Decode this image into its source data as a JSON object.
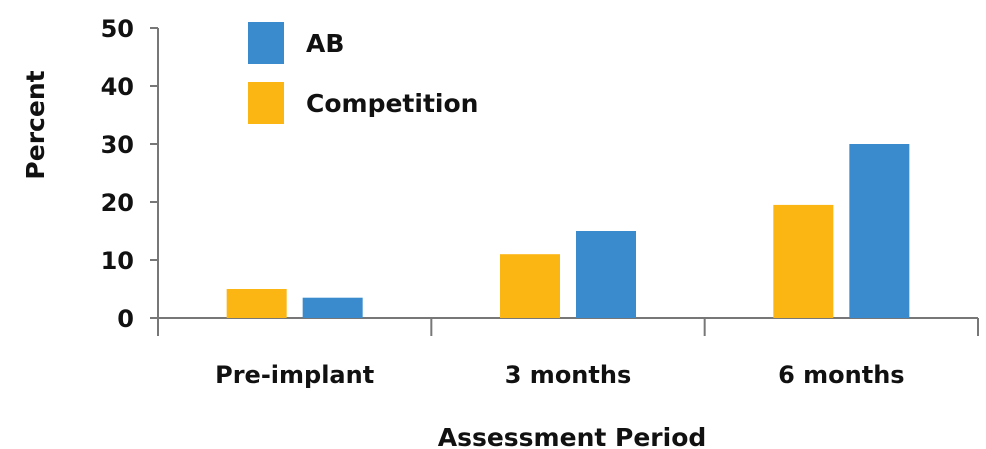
{
  "chart_data": {
    "type": "bar",
    "title": "",
    "xlabel": "Assessment Period",
    "ylabel": "Percent",
    "categories": [
      "Pre-implant",
      "3 months",
      "6 months"
    ],
    "series": [
      {
        "name": "Competition",
        "values": [
          5,
          11,
          19.5
        ],
        "color": "#FBB614"
      },
      {
        "name": "AB",
        "values": [
          3.5,
          15,
          30
        ],
        "color": "#3A8BCE"
      }
    ],
    "ylim": [
      0,
      50
    ],
    "yticks": [
      0,
      10,
      20,
      30,
      40,
      50
    ],
    "grid": false,
    "legend_position": "top-left",
    "legend_order": [
      "AB",
      "Competition"
    ]
  }
}
